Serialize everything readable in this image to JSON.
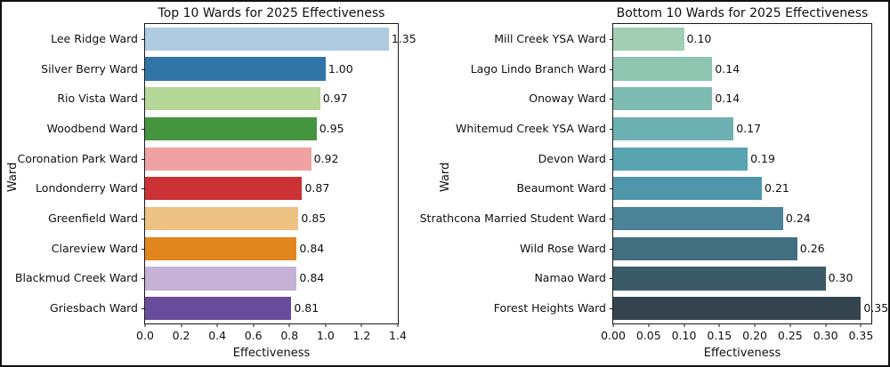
{
  "figure": {
    "background": "#ffffff",
    "border_color": "#111111",
    "text_color": "#111111"
  },
  "chart_data": [
    {
      "type": "bar",
      "orientation": "horizontal",
      "title": "Top 10 Wards for 2025 Effectiveness",
      "xlabel": "Effectiveness",
      "ylabel": "Ward",
      "xlim": [
        0,
        1.4
      ],
      "grid": false,
      "legend": null,
      "categories": [
        "Lee Ridge Ward",
        "Silver Berry Ward",
        "Rio Vista Ward",
        "Woodbend Ward",
        "Coronation Park Ward",
        "Londonderry Ward",
        "Greenfield Ward",
        "Clareview Ward",
        "Blackmud Creek Ward",
        "Griesbach Ward"
      ],
      "values": [
        1.35,
        1.0,
        0.97,
        0.95,
        0.92,
        0.87,
        0.85,
        0.84,
        0.84,
        0.81
      ],
      "value_labels": [
        "1.35",
        "1.00",
        "0.97",
        "0.95",
        "0.92",
        "0.87",
        "0.85",
        "0.84",
        "0.84",
        "0.81"
      ],
      "bar_colors": [
        "#aecbe1",
        "#3075a6",
        "#b5d797",
        "#45953e",
        "#efa2a2",
        "#ca3235",
        "#edc283",
        "#e0861d",
        "#c5b2d6",
        "#6a4c9c"
      ],
      "xticks": [
        0.0,
        0.2,
        0.4,
        0.6,
        0.8,
        1.0,
        1.2,
        1.4
      ],
      "xtick_labels": [
        "0.0",
        "0.2",
        "0.4",
        "0.6",
        "0.8",
        "1.0",
        "1.2",
        "1.4"
      ]
    },
    {
      "type": "bar",
      "orientation": "horizontal",
      "title": "Bottom 10 Wards for 2025 Effectiveness",
      "xlabel": "Effectiveness",
      "ylabel": "Ward",
      "xlim": [
        0,
        0.3646
      ],
      "grid": false,
      "legend": null,
      "categories": [
        "Mill Creek YSA Ward",
        "Lago Lindo Branch Ward",
        "Onoway Ward",
        "Whitemud Creek YSA Ward",
        "Devon Ward",
        "Beaumont Ward",
        "Strathcona Married Student Ward",
        "Wild Rose Ward",
        "Namao Ward",
        "Forest Heights Ward"
      ],
      "values": [
        0.1,
        0.14,
        0.14,
        0.17,
        0.19,
        0.21,
        0.24,
        0.26,
        0.3,
        0.35
      ],
      "value_labels": [
        "0.10",
        "0.14",
        "0.14",
        "0.17",
        "0.19",
        "0.21",
        "0.24",
        "0.26",
        "0.30",
        "0.35"
      ],
      "bar_colors": [
        "#a2ceb4",
        "#8ec6b2",
        "#7dbcb3",
        "#6db1b2",
        "#58a4b1",
        "#4f96ab",
        "#4a8297",
        "#416f80",
        "#3a5a67",
        "#344550"
      ],
      "xticks": [
        0.0,
        0.05,
        0.1,
        0.15,
        0.2,
        0.25,
        0.3,
        0.35
      ],
      "xtick_labels": [
        "0.00",
        "0.05",
        "0.10",
        "0.15",
        "0.20",
        "0.25",
        "0.30",
        "0.35"
      ]
    }
  ]
}
